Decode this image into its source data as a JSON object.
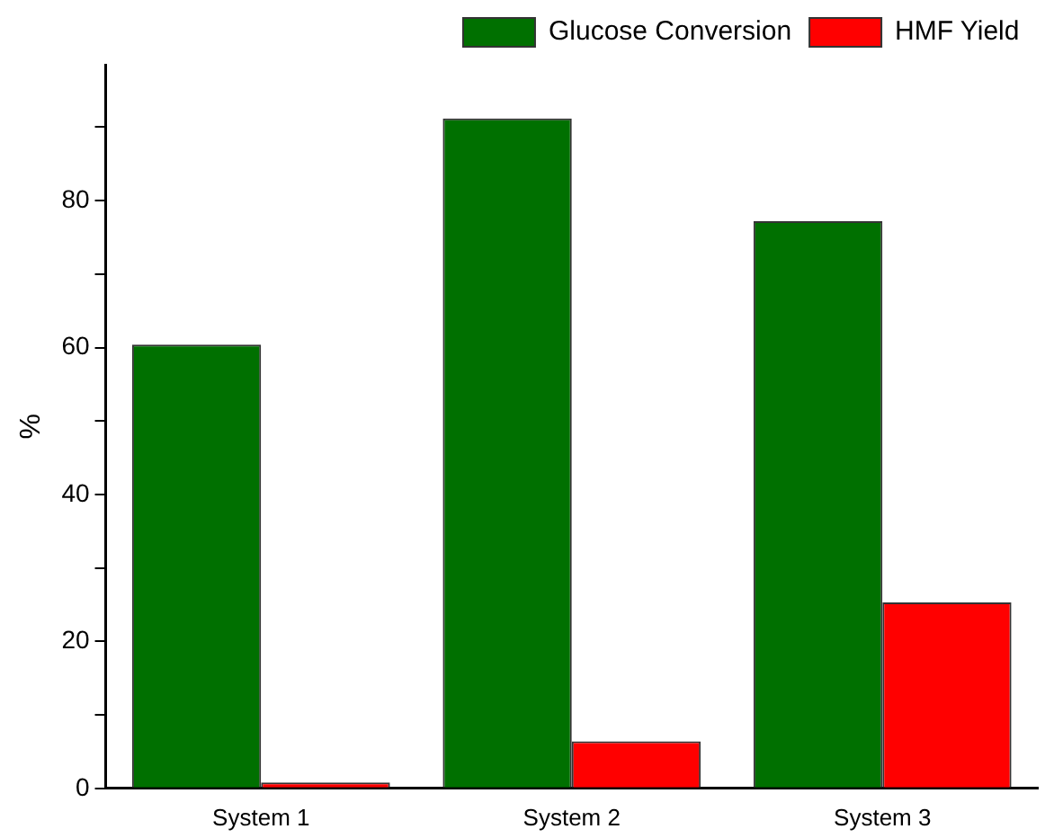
{
  "chart_data": {
    "type": "bar",
    "ylabel": "%",
    "categories": [
      "System 1",
      "System 2",
      "System 3"
    ],
    "series": [
      {
        "name": "Glucose Conversion",
        "color": "#007000",
        "values": [
          60.4,
          91.2,
          77.2
        ]
      },
      {
        "name": "HMF Yield",
        "color": "#ff0000",
        "values": [
          0.8,
          6.4,
          25.3
        ]
      }
    ],
    "ylim": [
      0,
      98.5
    ],
    "yticks": [
      0,
      {
        "value": 10,
        "label": null
      },
      20,
      {
        "value": 30,
        "label": null
      },
      40,
      {
        "value": 50,
        "label": null
      },
      60,
      {
        "value": 70,
        "label": null
      },
      80,
      {
        "value": 90,
        "label": null
      }
    ],
    "grid": false,
    "legend": "top right"
  }
}
